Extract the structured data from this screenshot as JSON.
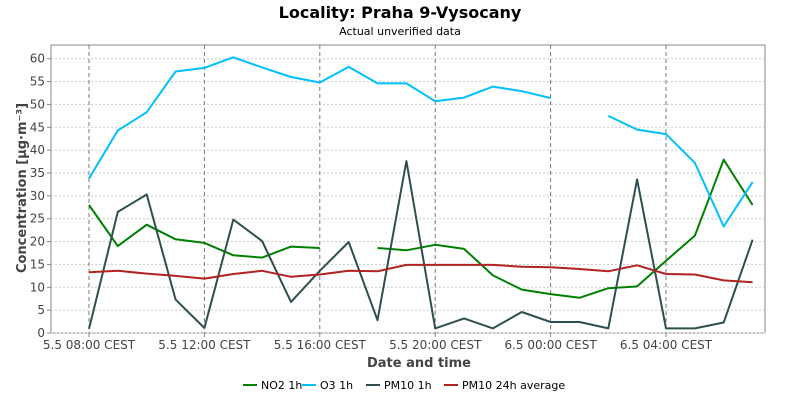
{
  "chart_data": {
    "type": "line",
    "title": "Locality: Praha 9-Vysocany",
    "subtitle": "Actual unverified data",
    "xlabel": "Date and time",
    "ylabel": "Concentration [µg·m⁻³]",
    "ylim": [
      0,
      63
    ],
    "yticks": [
      0,
      5,
      10,
      15,
      20,
      25,
      30,
      35,
      40,
      45,
      50,
      55,
      60
    ],
    "grid": true,
    "legend_position": "bottom",
    "x": [
      "5.5 08:00",
      "5.5 09:00",
      "5.5 10:00",
      "5.5 11:00",
      "5.5 12:00",
      "5.5 13:00",
      "5.5 14:00",
      "5.5 15:00",
      "5.5 16:00",
      "5.5 17:00",
      "5.5 18:00",
      "5.5 19:00",
      "5.5 20:00",
      "5.5 21:00",
      "5.5 22:00",
      "5.5 23:00",
      "6.5 00:00",
      "6.5 01:00",
      "6.5 02:00",
      "6.5 03:00",
      "6.5 04:00",
      "6.5 05:00",
      "6.5 06:00",
      "6.5 07:00"
    ],
    "x_tick_labels": [
      {
        "index": 0,
        "label": "5.5 08:00 CEST"
      },
      {
        "index": 4,
        "label": "5.5 12:00 CEST"
      },
      {
        "index": 8,
        "label": "5.5 16:00 CEST"
      },
      {
        "index": 12,
        "label": "5.5 20:00 CEST"
      },
      {
        "index": 16,
        "label": "6.5 00:00 CEST"
      },
      {
        "index": 20,
        "label": "6.5 04:00 CEST"
      }
    ],
    "series": [
      {
        "name": "NO2 1h",
        "color": "#008000",
        "values": [
          28,
          19,
          23.7,
          20.5,
          19.7,
          17,
          16.5,
          18.9,
          18.6,
          null,
          18.6,
          18.1,
          19.3,
          18.4,
          12.6,
          9.5,
          8.5,
          7.7,
          9.8,
          10.2,
          15.8,
          21.3,
          37.9,
          28
        ]
      },
      {
        "name": "O3 1h",
        "color": "#00BFFF",
        "values": [
          33.8,
          44.3,
          48.3,
          57.2,
          58,
          60.3,
          58.1,
          56,
          54.8,
          58.2,
          54.6,
          54.6,
          50.7,
          51.5,
          53.9,
          52.9,
          51.4,
          null,
          47.5,
          44.5,
          43.5,
          37.2,
          23.3,
          33
        ]
      },
      {
        "name": "PM10 1h",
        "color": "#2F4F4F",
        "values": [
          0.9,
          26.5,
          30.3,
          7.3,
          1.1,
          24.8,
          20.1,
          6.8,
          13.6,
          19.9,
          2.8,
          37.6,
          1,
          3.2,
          1,
          4.6,
          2.4,
          2.4,
          1,
          33.6,
          1,
          1,
          2.3,
          20.4
        ]
      },
      {
        "name": "PM10 24h average",
        "color": "#B22222",
        "values": [
          13.3,
          13.6,
          13,
          12.5,
          11.9,
          12.9,
          13.6,
          12.3,
          12.8,
          13.6,
          13.5,
          14.9,
          14.9,
          14.9,
          14.9,
          14.5,
          14.4,
          14,
          13.5,
          14.8,
          12.9,
          12.8,
          11.5,
          11.1
        ]
      }
    ]
  }
}
